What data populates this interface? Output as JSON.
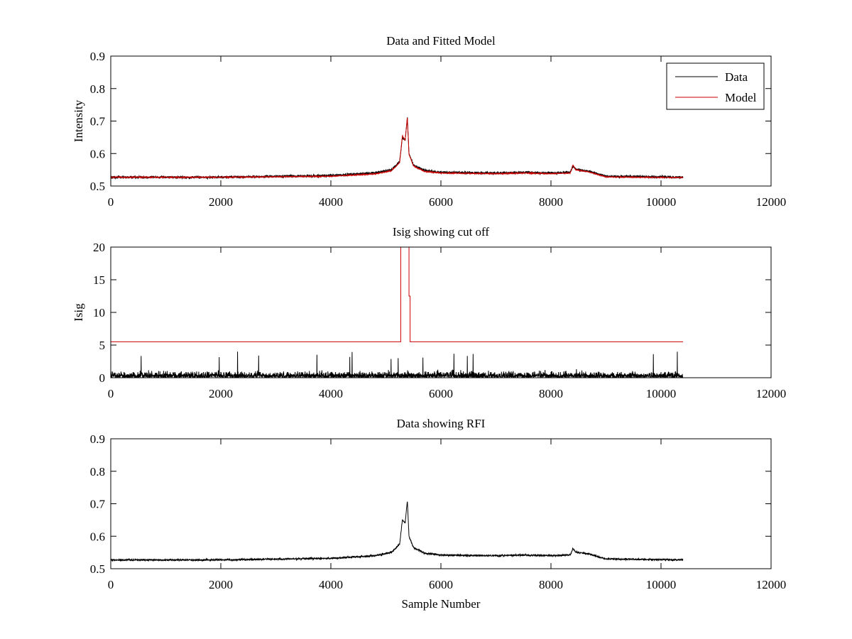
{
  "window": {
    "background": "#ffffff"
  },
  "chart_data": [
    {
      "type": "line",
      "title": "Data and Fitted Model",
      "xlabel": "",
      "ylabel": "Intensity",
      "xlim": [
        0,
        12000
      ],
      "ylim": [
        0.5,
        0.9
      ],
      "xticks": [
        0,
        2000,
        4000,
        6000,
        8000,
        10000,
        12000
      ],
      "yticks": [
        0.5,
        0.6,
        0.7,
        0.8,
        0.9
      ],
      "xtick_labels": [
        "0",
        "2000",
        "4000",
        "6000",
        "8000",
        "10000",
        "12000"
      ],
      "ytick_labels": [
        "0.5",
        "0.6",
        "0.7",
        "0.8",
        "0.9"
      ],
      "grid": false,
      "legend": {
        "placement": "top-right",
        "entries": [
          "Data",
          "Model"
        ]
      },
      "series": [
        {
          "name": "Data",
          "color": "#000000",
          "shape": "spectrum",
          "n_samples": 10400,
          "noise": 0.004,
          "x": [
            0,
            2000,
            4000,
            4800,
            5100,
            5250,
            5300,
            5350,
            5390,
            5420,
            5500,
            5700,
            6000,
            7000,
            7500,
            8000,
            8350,
            8400,
            8450,
            8700,
            9000,
            10400
          ],
          "y": [
            0.527,
            0.527,
            0.532,
            0.54,
            0.55,
            0.575,
            0.65,
            0.64,
            0.71,
            0.6,
            0.565,
            0.548,
            0.542,
            0.54,
            0.542,
            0.54,
            0.542,
            0.562,
            0.552,
            0.545,
            0.53,
            0.527
          ]
        },
        {
          "name": "Model",
          "color": "#cc0000",
          "shape": "spectrum",
          "n_samples": 10400,
          "noise": 0.0015,
          "x": [
            0,
            2000,
            4000,
            4800,
            5100,
            5250,
            5300,
            5350,
            5390,
            5420,
            5500,
            5700,
            6000,
            7000,
            7500,
            8000,
            8350,
            8400,
            8450,
            8700,
            9000,
            10400
          ],
          "y": [
            0.527,
            0.527,
            0.53,
            0.537,
            0.547,
            0.572,
            0.655,
            0.64,
            0.712,
            0.598,
            0.562,
            0.545,
            0.54,
            0.538,
            0.54,
            0.538,
            0.54,
            0.565,
            0.55,
            0.543,
            0.528,
            0.526
          ]
        }
      ]
    },
    {
      "type": "line",
      "title": "Isig showing cut off",
      "xlabel": "",
      "ylabel": "Isig",
      "xlim": [
        0,
        12000
      ],
      "ylim": [
        0,
        20
      ],
      "xticks": [
        0,
        2000,
        4000,
        6000,
        8000,
        10000,
        12000
      ],
      "yticks": [
        0,
        5,
        10,
        15,
        20
      ],
      "xtick_labels": [
        "0",
        "2000",
        "4000",
        "6000",
        "8000",
        "10000",
        "12000"
      ],
      "ytick_labels": [
        "0",
        "5",
        "10",
        "15",
        "20"
      ],
      "grid": false,
      "series": [
        {
          "color": "#000000",
          "shape": "abs-noise",
          "n_samples": 10400,
          "x_range": [
            0,
            10400
          ],
          "typical": 0.9,
          "max": 4
        },
        {
          "color": "#cc0000",
          "shape": "step",
          "x": [
            0,
            5270,
            5270,
            5420,
            5420,
            5440,
            5440,
            10400
          ],
          "y": [
            5.5,
            5.5,
            20,
            20,
            12.5,
            12.5,
            5.5,
            5.5
          ]
        }
      ]
    },
    {
      "type": "line",
      "title": "Data showing RFI",
      "xlabel": "Sample Number",
      "ylabel": "",
      "xlim": [
        0,
        12000
      ],
      "ylim": [
        0.5,
        0.9
      ],
      "xticks": [
        0,
        2000,
        4000,
        6000,
        8000,
        10000,
        12000
      ],
      "yticks": [
        0.5,
        0.6,
        0.7,
        0.8,
        0.9
      ],
      "xtick_labels": [
        "0",
        "2000",
        "4000",
        "6000",
        "8000",
        "10000",
        "12000"
      ],
      "ytick_labels": [
        "0.5",
        "0.6",
        "0.7",
        "0.8",
        "0.9"
      ],
      "grid": false,
      "series": [
        {
          "color": "#000000",
          "shape": "spectrum",
          "n_samples": 10400,
          "noise": 0.003,
          "x": [
            0,
            2000,
            4000,
            4800,
            5100,
            5250,
            5300,
            5350,
            5390,
            5420,
            5500,
            5700,
            6000,
            7000,
            7500,
            8000,
            8350,
            8400,
            8450,
            8700,
            9000,
            10400
          ],
          "y": [
            0.527,
            0.527,
            0.532,
            0.54,
            0.55,
            0.575,
            0.65,
            0.64,
            0.71,
            0.6,
            0.565,
            0.548,
            0.542,
            0.54,
            0.542,
            0.54,
            0.542,
            0.562,
            0.552,
            0.545,
            0.53,
            0.527
          ]
        }
      ]
    }
  ]
}
